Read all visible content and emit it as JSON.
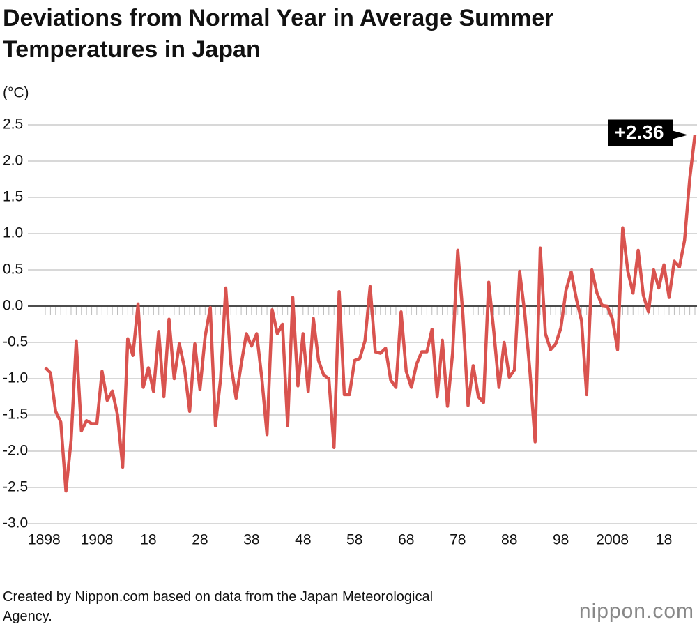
{
  "chart_data": {
    "type": "line",
    "title": "Deviations from Normal Year in Average Summer Temperatures in Japan",
    "y_label": "(°C)",
    "annotation": "+2.36",
    "source": "Created by Nippon.com based on data from the Japan Meteorological Agency.",
    "logo": "nippon.com",
    "color": "#d9534f",
    "grid": true,
    "x": [
      1898,
      1899,
      1900,
      1901,
      1902,
      1903,
      1904,
      1905,
      1906,
      1907,
      1908,
      1909,
      1910,
      1911,
      1912,
      1913,
      1914,
      1915,
      1916,
      1917,
      1918,
      1919,
      1920,
      1921,
      1922,
      1923,
      1924,
      1925,
      1926,
      1927,
      1928,
      1929,
      1930,
      1931,
      1932,
      1933,
      1934,
      1935,
      1936,
      1937,
      1938,
      1939,
      1940,
      1941,
      1942,
      1943,
      1944,
      1945,
      1946,
      1947,
      1948,
      1949,
      1950,
      1951,
      1952,
      1953,
      1954,
      1955,
      1956,
      1957,
      1958,
      1959,
      1960,
      1961,
      1962,
      1963,
      1964,
      1965,
      1966,
      1967,
      1968,
      1969,
      1970,
      1971,
      1972,
      1973,
      1974,
      1975,
      1976,
      1977,
      1978,
      1979,
      1980,
      1981,
      1982,
      1983,
      1984,
      1985,
      1986,
      1987,
      1988,
      1989,
      1990,
      1991,
      1992,
      1993,
      1994,
      1995,
      1996,
      1997,
      1998,
      1999,
      2000,
      2001,
      2002,
      2003,
      2004,
      2005,
      2006,
      2007,
      2008,
      2009,
      2010,
      2011,
      2012,
      2013,
      2014,
      2015,
      2016,
      2017,
      2018,
      2019,
      2020,
      2021,
      2022,
      2023,
      2024
    ],
    "values": [
      -0.85,
      -0.92,
      -1.45,
      -1.6,
      -2.55,
      -1.85,
      -0.48,
      -1.72,
      -1.58,
      -1.62,
      -1.62,
      -0.9,
      -1.3,
      -1.17,
      -1.5,
      -2.22,
      -0.45,
      -0.68,
      0.03,
      -1.12,
      -0.85,
      -1.18,
      -0.35,
      -1.25,
      -0.18,
      -1.0,
      -0.52,
      -0.85,
      -1.45,
      -0.52,
      -1.15,
      -0.42,
      -0.02,
      -1.65,
      -1.0,
      0.25,
      -0.8,
      -1.27,
      -0.8,
      -0.38,
      -0.55,
      -0.38,
      -1.0,
      -1.77,
      -0.05,
      -0.38,
      -0.25,
      -1.65,
      0.12,
      -1.1,
      -0.38,
      -1.18,
      -0.17,
      -0.75,
      -0.95,
      -1.0,
      -1.95,
      0.2,
      -1.22,
      -1.22,
      -0.75,
      -0.72,
      -0.48,
      0.27,
      -0.63,
      -0.65,
      -0.58,
      -1.02,
      -1.12,
      -0.08,
      -0.9,
      -1.12,
      -0.8,
      -0.63,
      -0.63,
      -0.32,
      -1.25,
      -0.47,
      -1.38,
      -0.65,
      0.77,
      -0.12,
      -1.37,
      -0.82,
      -1.25,
      -1.33,
      0.33,
      -0.35,
      -1.12,
      -0.5,
      -0.98,
      -0.88,
      0.48,
      -0.1,
      -0.9,
      -1.87,
      0.8,
      -0.38,
      -0.6,
      -0.52,
      -0.3,
      0.22,
      0.47,
      0.1,
      -0.2,
      -1.22,
      0.5,
      0.18,
      0.01,
      0.0,
      -0.18,
      -0.6,
      1.08,
      0.48,
      0.18,
      0.77,
      0.15,
      -0.08,
      0.5,
      0.25,
      0.57,
      0.12,
      0.62,
      0.54,
      0.91,
      1.76,
      2.36
    ],
    "xlim": [
      1898,
      2024
    ],
    "xticks": [
      1898,
      1908,
      {
        "value": 1918,
        "label": "18"
      },
      {
        "value": 1928,
        "label": "28"
      },
      {
        "value": 1938,
        "label": "38"
      },
      {
        "value": 1948,
        "label": "48"
      },
      {
        "value": 1958,
        "label": "58"
      },
      {
        "value": 1968,
        "label": "68"
      },
      {
        "value": 1978,
        "label": "78"
      },
      {
        "value": 1988,
        "label": "88"
      },
      {
        "value": 1998,
        "label": "98"
      },
      2008,
      {
        "value": 2018,
        "label": "18"
      }
    ],
    "ylim": [
      -3,
      2.5
    ],
    "yticks": [
      2.5,
      {
        "value": 2,
        "label": "2.0"
      },
      1.5,
      {
        "value": 1,
        "label": "1.0"
      },
      0.5,
      {
        "value": 0,
        "label": "0.0"
      },
      -0.5,
      {
        "value": -1,
        "label": "-1.0"
      },
      -1.5,
      {
        "value": -2,
        "label": "-2.0"
      },
      -2.5,
      {
        "value": -3,
        "label": "-3.0"
      }
    ]
  }
}
